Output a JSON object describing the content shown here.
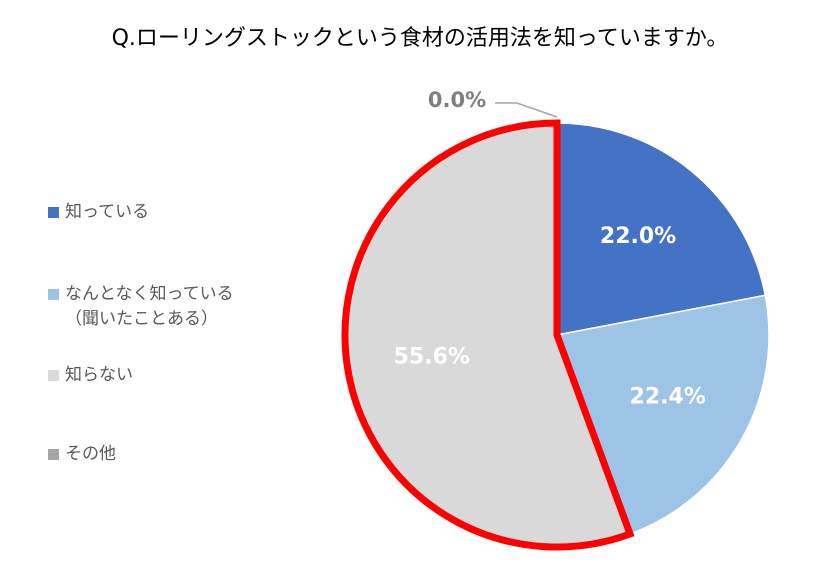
{
  "chart_data": {
    "type": "pie",
    "title": "Q.ローリングストックという食材の活用法を知っていますか。",
    "categories": [
      "知っている",
      "なんとなく知っている\n（聞いたことある）",
      "知らない",
      "その他"
    ],
    "values": [
      22.0,
      22.4,
      55.6,
      0.0
    ],
    "value_labels": [
      "22.0%",
      "22.4%",
      "55.6%",
      "0.0%"
    ],
    "colors": [
      "#4472c4",
      "#9dc3e6",
      "#d9d9d9",
      "#a5a5a5"
    ],
    "legend": "left",
    "highlight_index": 2,
    "highlight_color": "#ff0000"
  }
}
